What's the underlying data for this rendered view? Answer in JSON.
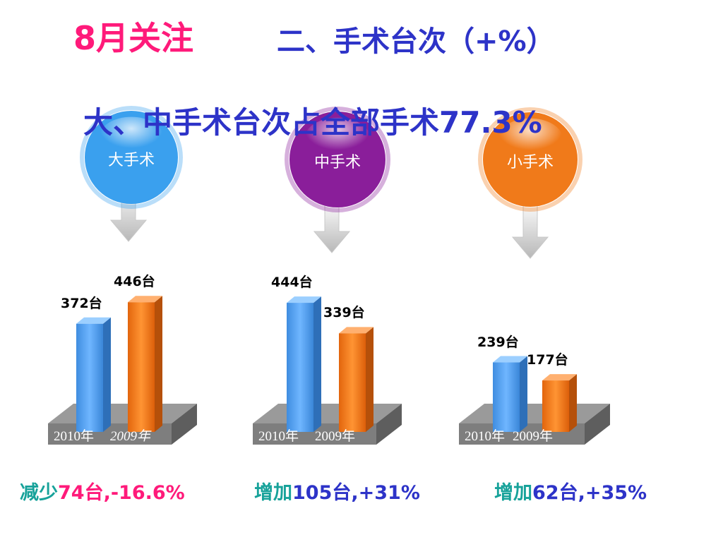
{
  "header": {
    "title_main": "8月关注",
    "title_sub": "二、手术台次（+%）",
    "subtitle": "大、中手术台次占全部手术77.3%"
  },
  "colors": {
    "accent_pink": "#ff1a7a",
    "title_blue": "#2d33c8",
    "summary_teal": "#17a29a",
    "summary_blue": "#2d33c8",
    "bar_2010": "#4a9ef0",
    "bar_2009": "#f07a1a"
  },
  "chart_data": [
    {
      "type": "bar",
      "group": "大手术",
      "bubble_color": "#3aa0ee",
      "categories": [
        "2010年",
        "2009年"
      ],
      "values": [
        372,
        446
      ],
      "value_labels": [
        "372台",
        "446台"
      ],
      "unit": "台",
      "summary_prefix": "减少",
      "summary_change": "74台,-16.6%"
    },
    {
      "type": "bar",
      "group": "中手术",
      "bubble_color": "#8a1e9a",
      "categories": [
        "2010年",
        "2009年"
      ],
      "values": [
        444,
        339
      ],
      "value_labels": [
        "444台",
        "339台"
      ],
      "unit": "台",
      "summary_prefix": "增加",
      "summary_change": "105台,+31%"
    },
    {
      "type": "bar",
      "group": "小手术",
      "bubble_color": "#f07a1a",
      "categories": [
        "2010年",
        "2009年"
      ],
      "values": [
        239,
        177
      ],
      "value_labels": [
        "239台",
        "177台"
      ],
      "unit": "台",
      "summary_prefix": "增加",
      "summary_change": "62台,+35%"
    }
  ]
}
